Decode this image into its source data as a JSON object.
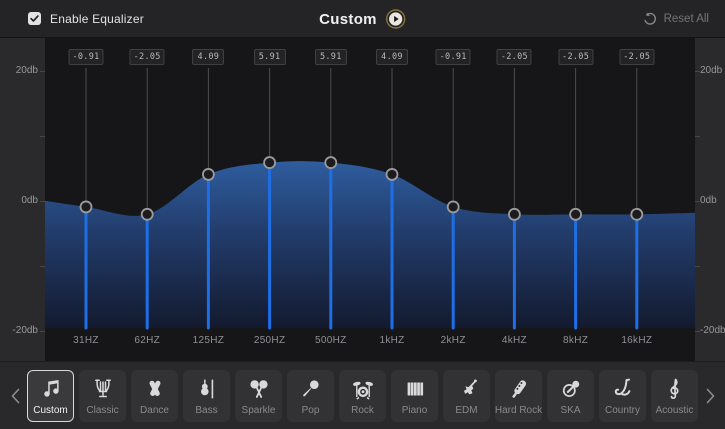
{
  "topbar": {
    "enable_label": "Enable Equalizer",
    "enabled": true,
    "title": "Custom",
    "reset_label": "Reset All"
  },
  "chart_data": {
    "type": "area",
    "title": "Custom equalizer curve",
    "categories": [
      "31HZ",
      "62HZ",
      "125HZ",
      "250HZ",
      "500HZ",
      "1kHZ",
      "2kHZ",
      "4kHZ",
      "8kHZ",
      "16kHZ"
    ],
    "values_db": [
      -0.91,
      -2.05,
      4.09,
      5.91,
      5.91,
      4.09,
      -0.91,
      -2.05,
      -2.05,
      -2.05
    ],
    "value_labels": [
      "-0.91",
      "-2.05",
      "4.09",
      "5.91",
      "5.91",
      "4.09",
      "-0.91",
      "-2.05",
      "-2.05",
      "-2.05"
    ],
    "ylim": [
      -20,
      20
    ],
    "y_axis": {
      "tick_values": [
        20,
        10,
        0,
        -10,
        -20
      ],
      "label_values": [
        20,
        0,
        -20
      ],
      "labels": [
        "20db",
        "0db",
        "-20db"
      ]
    },
    "grid": false,
    "legend": false
  },
  "colors": {
    "accent_blue": "#1e6fe6",
    "area_top": "#2f5fa2",
    "area_mid": "#223c6b",
    "area_bottom": "#131a2f",
    "knob_ring": "#9b9b9e",
    "knob_fill": "#1c1c1e",
    "track_gray": "#4d4d50",
    "play_ring_gold": "#857343",
    "chart_bg": "#161618",
    "panel_bg": "#2a2a2c"
  },
  "presets": {
    "selected": "Custom",
    "items": [
      {
        "label": "Custom",
        "icon": "music-note-icon"
      },
      {
        "label": "Classic",
        "icon": "lyre-icon"
      },
      {
        "label": "Dance",
        "icon": "ballet-shoes-icon"
      },
      {
        "label": "Bass",
        "icon": "violin-icon"
      },
      {
        "label": "Sparkle",
        "icon": "maracas-icon"
      },
      {
        "label": "Pop",
        "icon": "microphone-icon"
      },
      {
        "label": "Rock",
        "icon": "drum-kit-icon"
      },
      {
        "label": "Piano",
        "icon": "piano-keys-icon"
      },
      {
        "label": "EDM",
        "icon": "electric-guitar-icon"
      },
      {
        "label": "Hard Rock",
        "icon": "guitar-headstock-icon"
      },
      {
        "label": "SKA",
        "icon": "tuba-icon"
      },
      {
        "label": "Country",
        "icon": "saxophone-icon"
      },
      {
        "label": "Acoustic",
        "icon": "treble-clef-icon"
      }
    ]
  }
}
